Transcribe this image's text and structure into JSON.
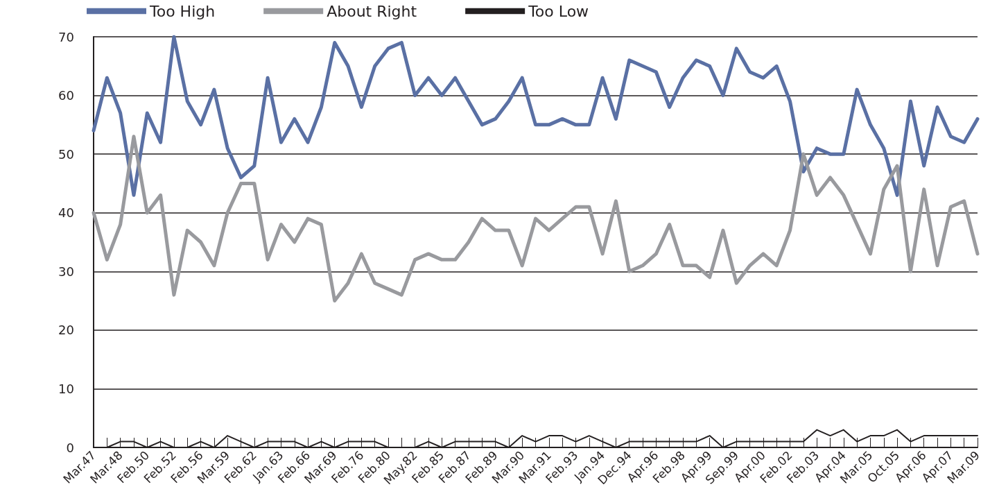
{
  "chart_data": {
    "type": "line",
    "categories": [
      "Mar.47",
      null,
      "Mar.48",
      null,
      "Feb.50",
      null,
      "Feb.52",
      null,
      "Feb.56",
      null,
      "Mar.59",
      null,
      "Feb.62",
      null,
      "Jan.63",
      null,
      "Feb.66",
      null,
      "Mar.69",
      null,
      "Feb.76",
      null,
      "Feb.80",
      null,
      "May.82",
      null,
      "Feb.85",
      null,
      "Feb.87",
      null,
      "Feb.89",
      null,
      "Mar.90",
      null,
      "Mar.91",
      null,
      "Feb.93",
      null,
      "Jan.94",
      null,
      "Dec.94",
      null,
      "Apr.96",
      null,
      "Feb.98",
      null,
      "Apr.99",
      null,
      "Sep.99",
      null,
      "Apr.00",
      null,
      "Feb.02",
      null,
      "Feb.03",
      null,
      "Apr.04",
      null,
      "Mar.05",
      null,
      "Oct.05",
      null,
      "Apr.06",
      null,
      "Apr.07",
      null,
      "Mar.09"
    ],
    "series": [
      {
        "name": "Too High",
        "color": "#5a70a4",
        "values": [
          54,
          63,
          57,
          43,
          57,
          52,
          70,
          59,
          55,
          61,
          51,
          46,
          48,
          63,
          52,
          56,
          52,
          58,
          69,
          65,
          58,
          65,
          68,
          69,
          60,
          63,
          60,
          63,
          59,
          55,
          56,
          59,
          63,
          55,
          55,
          56,
          55,
          55,
          63,
          56,
          66,
          65,
          64,
          58,
          63,
          66,
          65,
          60,
          68,
          64,
          63,
          65,
          59,
          47,
          51,
          50,
          50,
          61,
          55,
          51,
          43,
          59,
          48,
          58,
          53,
          52,
          56
        ]
      },
      {
        "name": "About Right",
        "color": "#999a9e",
        "values": [
          40,
          32,
          38,
          53,
          40,
          43,
          26,
          37,
          35,
          31,
          40,
          45,
          45,
          32,
          38,
          35,
          39,
          38,
          25,
          28,
          33,
          28,
          27,
          26,
          32,
          33,
          32,
          32,
          35,
          39,
          37,
          37,
          31,
          39,
          37,
          39,
          41,
          41,
          33,
          42,
          30,
          31,
          33,
          38,
          31,
          31,
          29,
          37,
          28,
          31,
          33,
          31,
          37,
          50,
          43,
          46,
          43,
          38,
          33,
          44,
          48,
          30,
          44,
          31,
          41,
          42,
          33
        ]
      },
      {
        "name": "Too Low",
        "color": "#231f20",
        "values": [
          0,
          0,
          1,
          1,
          0,
          1,
          0,
          0,
          1,
          0,
          2,
          1,
          0,
          1,
          1,
          1,
          0,
          1,
          0,
          1,
          1,
          1,
          0,
          0,
          0,
          1,
          0,
          1,
          1,
          1,
          1,
          0,
          2,
          1,
          2,
          2,
          1,
          2,
          1,
          0,
          1,
          1,
          1,
          1,
          1,
          1,
          2,
          0,
          1,
          1,
          1,
          1,
          1,
          1,
          3,
          2,
          3,
          1,
          2,
          2,
          3,
          1,
          2,
          2,
          2,
          2,
          2
        ]
      }
    ],
    "ylim": [
      0,
      70
    ],
    "yticks": [
      0,
      10,
      20,
      30,
      40,
      50,
      60,
      70
    ],
    "grid": "y",
    "legend": "top left",
    "marker": "none",
    "line_style": "solid"
  }
}
